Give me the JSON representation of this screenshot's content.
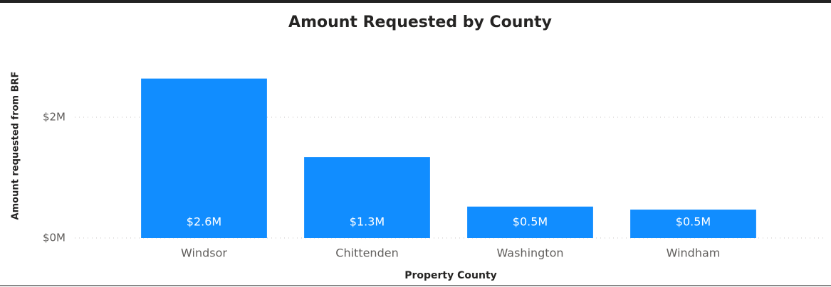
{
  "chart_data": {
    "type": "bar",
    "title": "Amount Requested by County",
    "x_label": "Property County",
    "y_label": "Amount requested from BRF",
    "categories": [
      "Windsor",
      "Chittenden",
      "Washington",
      "Windham"
    ],
    "values": [
      2640000,
      1340000,
      520000,
      470000
    ],
    "value_labels": [
      "$2.6M",
      "$1.3M",
      "$0.5M",
      "$0.5M"
    ],
    "color": "#118dff",
    "ylim": [
      0,
      2800000
    ],
    "yticks": [
      {
        "value": 0,
        "label": "$0M"
      },
      {
        "value": 2000000,
        "label": "$2M"
      }
    ],
    "grid": true
  }
}
